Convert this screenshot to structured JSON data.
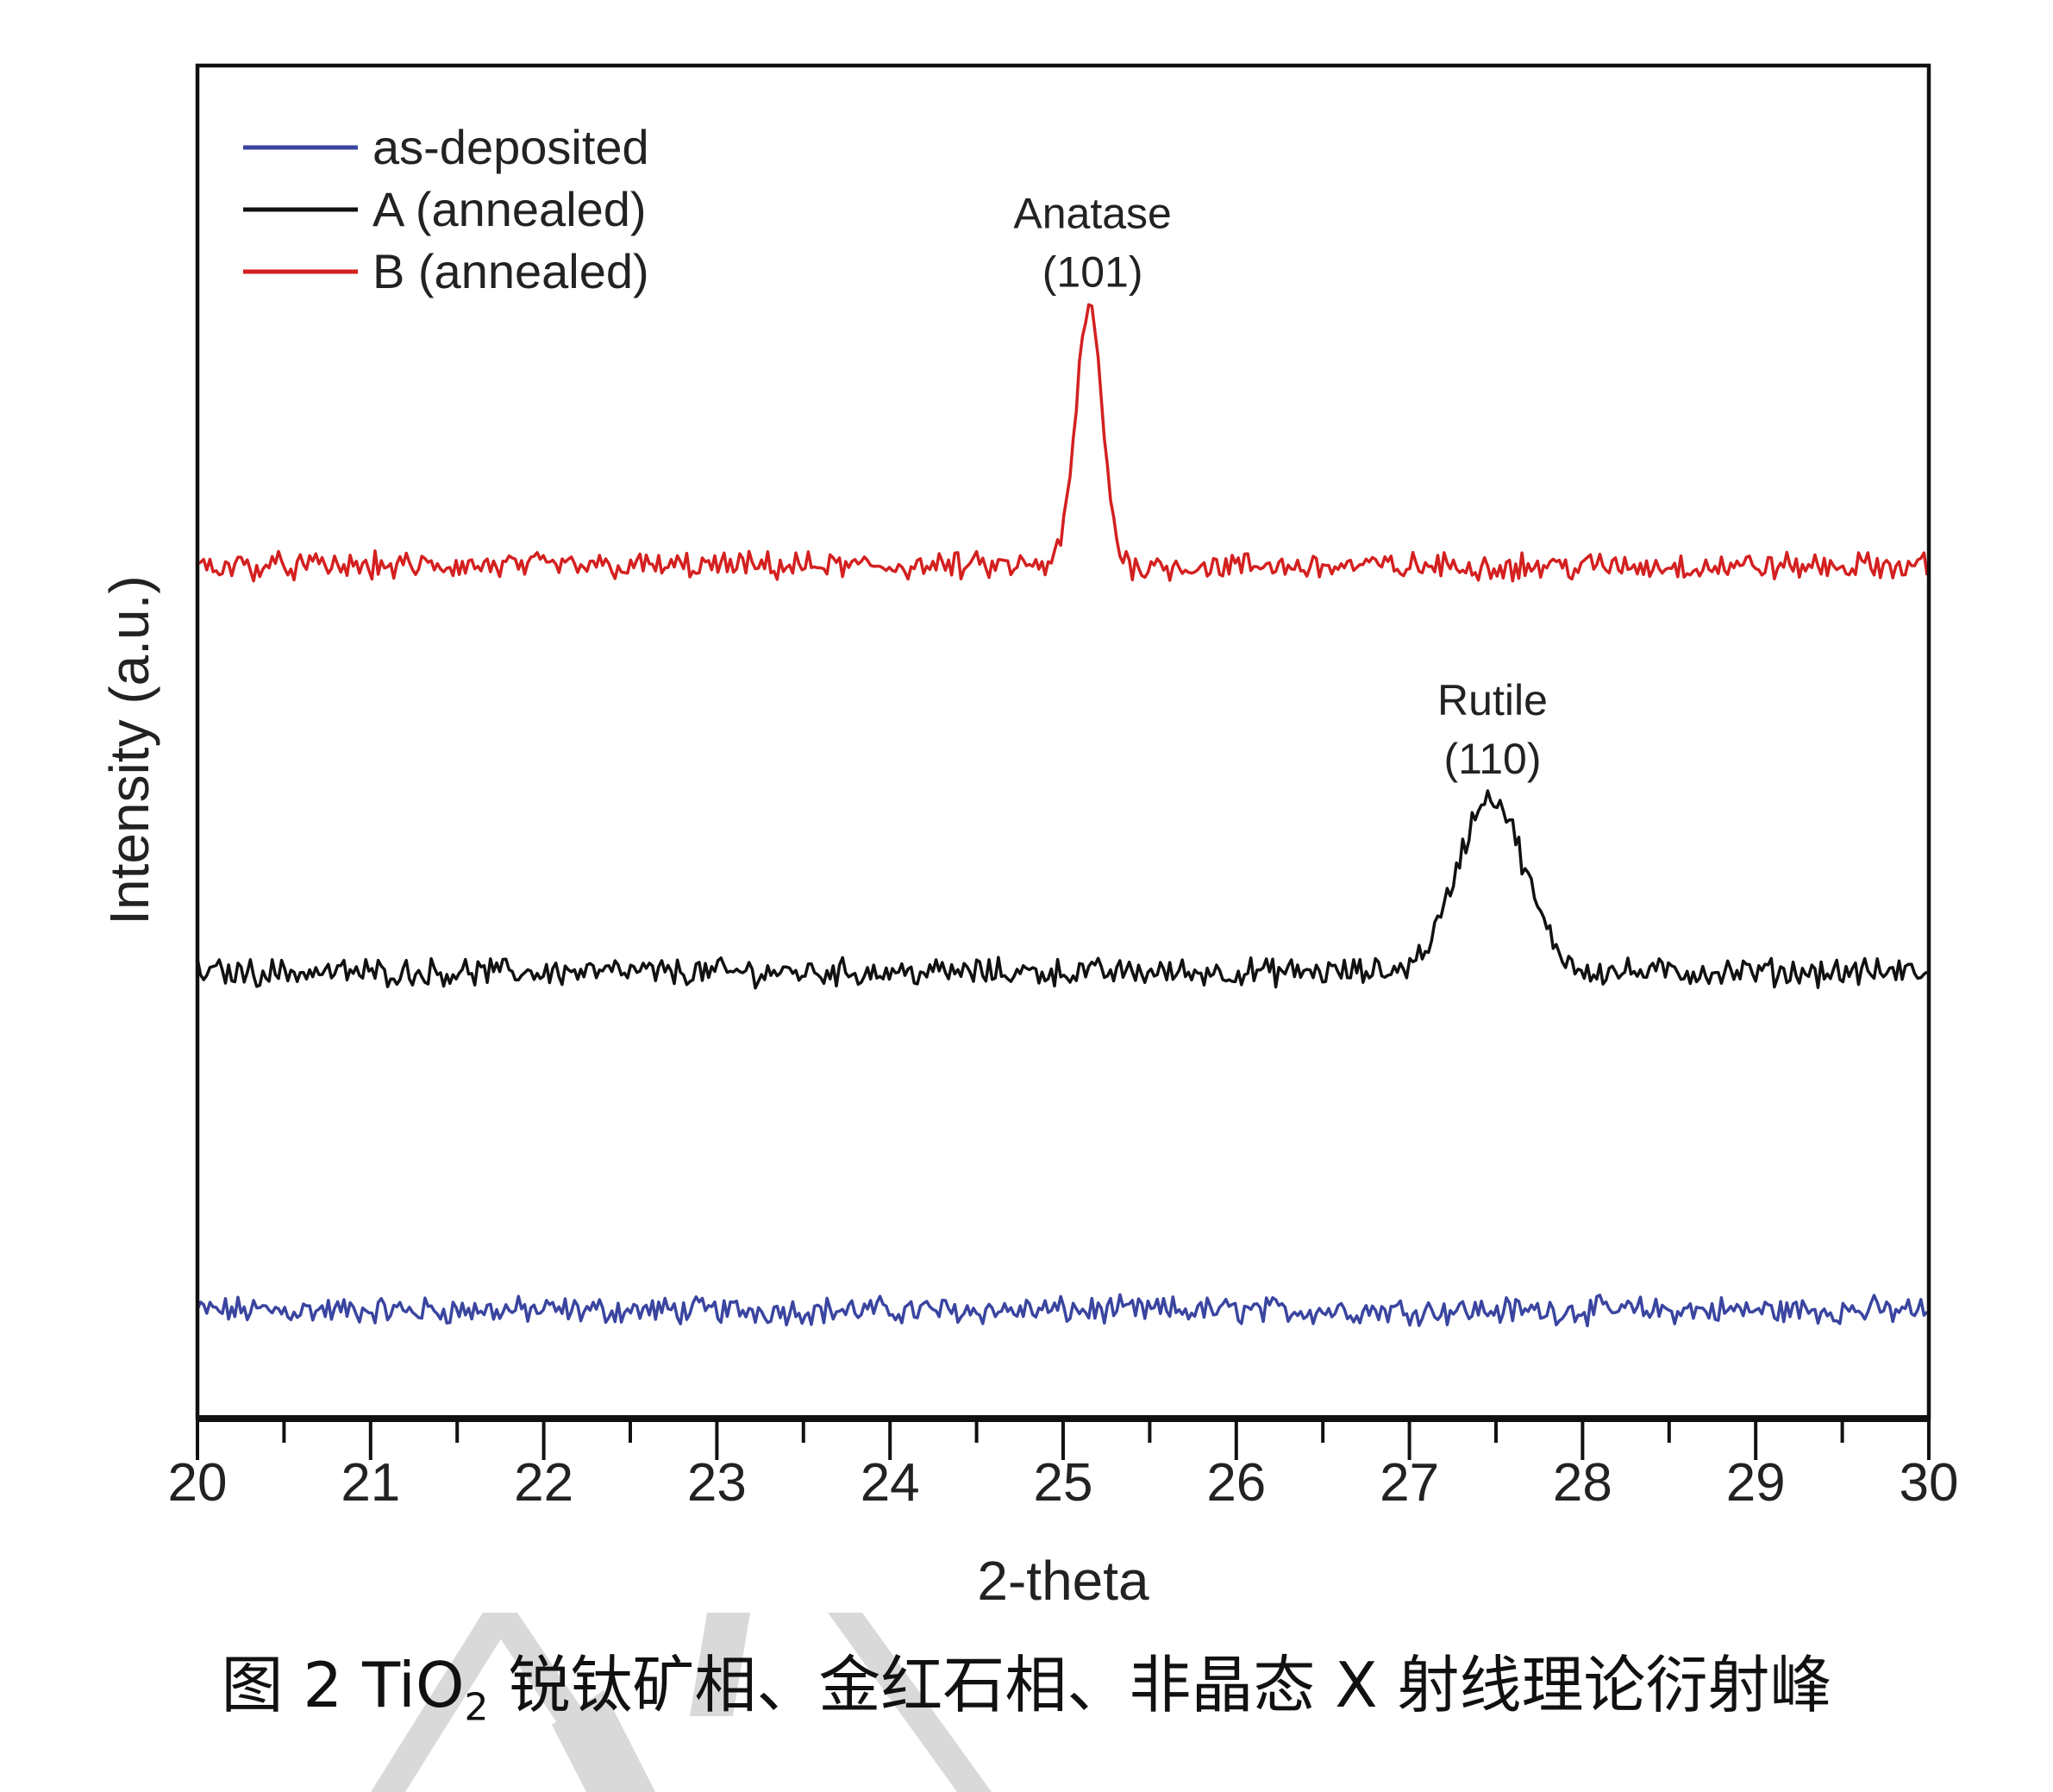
{
  "chart_data": {
    "type": "line",
    "xlabel": "2-theta",
    "ylabel": "Intensity (a.u.)",
    "xlim": [
      20,
      30
    ],
    "ylim": [
      0,
      100
    ],
    "xticks": [
      "20",
      "21",
      "22",
      "23",
      "24",
      "25",
      "26",
      "27",
      "28",
      "29",
      "30"
    ],
    "minor_ticks": true,
    "grid": false,
    "legend_placement": "top-left",
    "series": [
      {
        "name": "as-deposited",
        "color": "#3a45a0",
        "baseline": 8,
        "peaks": []
      },
      {
        "name": "A (annealed)",
        "color": "#111111",
        "baseline": 33,
        "peaks": [
          {
            "x": 27.47,
            "height": 46,
            "fwhm": 0.45
          }
        ]
      },
      {
        "name": "B (annealed)",
        "color": "#d42020",
        "baseline": 63,
        "peaks": [
          {
            "x": 25.15,
            "height": 82,
            "fwhm": 0.18
          }
        ]
      }
    ],
    "annotations": [
      {
        "lines": [
          "Anatase",
          "(101)"
        ],
        "x": 25.17,
        "y": 88
      },
      {
        "lines": [
          "Rutile",
          "(110)"
        ],
        "x": 27.48,
        "y": 52
      }
    ]
  },
  "caption": {
    "prefix": "图 2 TiO",
    "sub": "2",
    "suffix": " 锐钛矿相、金红石相、非晶态 X 射线理论衍射峰"
  },
  "watermark_color": "#d9d9d9"
}
